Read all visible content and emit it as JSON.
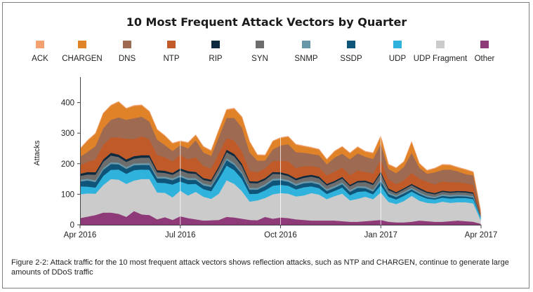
{
  "caption": "Figure 2-2: Attack traffic for the 10 most frequent attack vectors shows reflection attacks, such as NTP and CHARGEN, continue to generate large amounts of DDoS traffic",
  "chart_data": {
    "type": "area",
    "stacked": true,
    "title": "10 Most Frequent Attack Vectors by Quarter",
    "xlabel": "",
    "ylabel": "Attacks",
    "ylim": [
      0,
      470
    ],
    "yticks": [
      0,
      100,
      200,
      300,
      400
    ],
    "xlim": [
      "2016-04-01",
      "2017-04-01"
    ],
    "xticks": [
      {
        "label": "Apr 2016",
        "week": 0
      },
      {
        "label": "Jul 2016",
        "week": 13
      },
      {
        "label": "Oct 2016",
        "week": 26
      },
      {
        "label": "Jan 2017",
        "week": 39
      },
      {
        "label": "Apr 2017",
        "week": 52
      }
    ],
    "x": [
      0,
      1,
      2,
      3,
      4,
      5,
      6,
      7,
      8,
      9,
      10,
      11,
      12,
      13,
      14,
      15,
      16,
      17,
      18,
      19,
      20,
      21,
      22,
      23,
      24,
      25,
      26,
      27,
      28,
      29,
      30,
      31,
      32,
      33,
      34,
      35,
      36,
      37,
      38,
      39,
      40,
      41,
      42,
      43,
      44,
      45,
      46,
      47,
      48,
      49,
      50,
      51,
      52
    ],
    "grid": "vertical lines at x ticks",
    "legend": "top, single row",
    "series": [
      {
        "name": "Other",
        "color": "#8e3a78",
        "values": [
          22,
          27,
          32,
          40,
          40,
          36,
          26,
          45,
          34,
          32,
          18,
          25,
          16,
          28,
          22,
          18,
          14,
          15,
          16,
          26,
          24,
          20,
          16,
          15,
          26,
          20,
          24,
          22,
          18,
          16,
          14,
          14,
          14,
          14,
          12,
          10,
          10,
          12,
          14,
          16,
          10,
          8,
          8,
          10,
          14,
          12,
          10,
          10,
          12,
          14,
          12,
          10,
          3
        ]
      },
      {
        "name": "UDP Fragment",
        "color": "#cbcbcb",
        "values": [
          78,
          76,
          70,
          90,
          110,
          112,
          108,
          100,
          116,
          118,
          88,
          80,
          74,
          84,
          74,
          90,
          78,
          70,
          86,
          120,
          110,
          90,
          60,
          65,
          62,
          80,
          80,
          80,
          75,
          80,
          90,
          85,
          70,
          80,
          90,
          70,
          75,
          80,
          70,
          90,
          65,
          60,
          70,
          85,
          65,
          60,
          60,
          66,
          60,
          60,
          62,
          60,
          10
        ]
      },
      {
        "name": "UDP",
        "color": "#2fb3dc",
        "values": [
          26,
          22,
          20,
          30,
          30,
          33,
          33,
          34,
          31,
          30,
          32,
          32,
          42,
          30,
          37,
          26,
          25,
          25,
          48,
          48,
          45,
          40,
          25,
          22,
          25,
          28,
          27,
          26,
          23,
          27,
          22,
          21,
          17,
          17,
          20,
          17,
          23,
          18,
          16,
          24,
          17,
          15,
          17,
          14,
          17,
          14,
          13,
          13,
          14,
          14,
          14,
          14,
          8
        ]
      },
      {
        "name": "SSDP",
        "color": "#0f5479",
        "values": [
          16,
          20,
          18,
          20,
          19,
          17,
          16,
          16,
          15,
          16,
          14,
          15,
          14,
          15,
          14,
          13,
          12,
          14,
          15,
          18,
          17,
          16,
          14,
          13,
          14,
          17,
          15,
          13,
          12,
          13,
          12,
          12,
          10,
          10,
          11,
          11,
          13,
          10,
          9,
          13,
          9,
          8,
          8,
          7,
          6,
          5,
          4,
          6,
          6,
          6,
          5,
          5,
          2
        ]
      },
      {
        "name": "SNMP",
        "color": "#6897a9",
        "values": [
          6,
          6,
          6,
          6,
          6,
          6,
          6,
          6,
          6,
          6,
          6,
          6,
          6,
          6,
          6,
          6,
          6,
          6,
          6,
          6,
          6,
          6,
          6,
          6,
          6,
          6,
          6,
          6,
          6,
          6,
          6,
          6,
          6,
          6,
          6,
          6,
          6,
          6,
          6,
          6,
          5,
          5,
          5,
          5,
          5,
          5,
          5,
          5,
          5,
          5,
          5,
          5,
          2
        ]
      },
      {
        "name": "SYN",
        "color": "#6d6d6d",
        "values": [
          12,
          14,
          18,
          20,
          22,
          18,
          17,
          16,
          18,
          18,
          14,
          12,
          12,
          15,
          16,
          14,
          12,
          12,
          14,
          20,
          22,
          20,
          16,
          15,
          14,
          16,
          14,
          13,
          12,
          12,
          14,
          14,
          12,
          12,
          13,
          12,
          12,
          14,
          16,
          20,
          8,
          7,
          8,
          9,
          9,
          9,
          8,
          8,
          8,
          8,
          8,
          8,
          2
        ]
      },
      {
        "name": "RIP",
        "color": "#0e2a3f",
        "values": [
          7,
          8,
          8,
          8,
          9,
          8,
          8,
          8,
          8,
          8,
          7,
          7,
          6,
          7,
          7,
          6,
          6,
          6,
          7,
          8,
          8,
          8,
          6,
          6,
          6,
          6,
          6,
          6,
          6,
          6,
          6,
          6,
          5,
          5,
          5,
          5,
          5,
          5,
          5,
          6,
          5,
          4,
          4,
          4,
          5,
          4,
          4,
          4,
          4,
          4,
          4,
          4,
          1
        ]
      },
      {
        "name": "NTP",
        "color": "#c05a28",
        "values": [
          28,
          34,
          42,
          48,
          50,
          56,
          68,
          56,
          62,
          52,
          50,
          44,
          38,
          44,
          38,
          48,
          40,
          36,
          42,
          38,
          44,
          40,
          34,
          30,
          32,
          36,
          38,
          42,
          34,
          32,
          28,
          30,
          28,
          30,
          30,
          32,
          34,
          28,
          32,
          38,
          30,
          26,
          26,
          36,
          30,
          32,
          28,
          30,
          30,
          28,
          26,
          24,
          4
        ]
      },
      {
        "name": "DNS",
        "color": "#9e6a52",
        "values": [
          28,
          32,
          44,
          54,
          58,
          66,
          62,
          68,
          64,
          58,
          50,
          40,
          34,
          32,
          36,
          56,
          44,
          42,
          54,
          66,
          74,
          78,
          60,
          38,
          26,
          38,
          50,
          56,
          52,
          44,
          40,
          40,
          36,
          46,
          46,
          52,
          56,
          50,
          48,
          52,
          34,
          36,
          44,
          66,
          36,
          26,
          40,
          38,
          42,
          36,
          30,
          32,
          4
        ]
      },
      {
        "name": "CHARGEN",
        "color": "#e08228",
        "values": [
          25,
          37,
          40,
          48,
          46,
          50,
          36,
          40,
          37,
          32,
          32,
          30,
          24,
          12,
          18,
          16,
          18,
          16,
          22,
          26,
          30,
          34,
          34,
          18,
          16,
          26,
          24,
          24,
          24,
          21,
          20,
          18,
          15,
          20,
          22,
          19,
          20,
          16,
          18,
          25,
          14,
          16,
          16,
          35,
          13,
          10,
          12,
          16,
          14,
          12,
          14,
          10,
          4
        ]
      },
      {
        "name": "ACK",
        "color": "#f2a16f",
        "values": [
          2,
          2,
          2,
          2,
          2,
          2,
          2,
          2,
          2,
          2,
          2,
          2,
          2,
          2,
          2,
          2,
          2,
          2,
          2,
          2,
          2,
          2,
          2,
          2,
          2,
          2,
          2,
          2,
          2,
          2,
          2,
          2,
          2,
          2,
          2,
          2,
          2,
          2,
          2,
          2,
          2,
          2,
          2,
          2,
          2,
          2,
          2,
          2,
          2,
          2,
          2,
          2,
          1
        ]
      }
    ]
  }
}
